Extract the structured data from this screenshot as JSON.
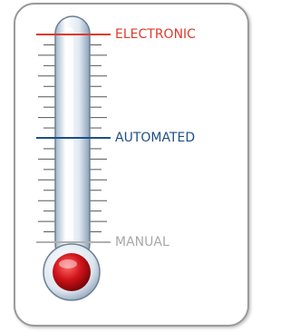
{
  "levels": [
    "ELECTRONIC",
    "AUTOMATED",
    "MANUAL"
  ]
}
